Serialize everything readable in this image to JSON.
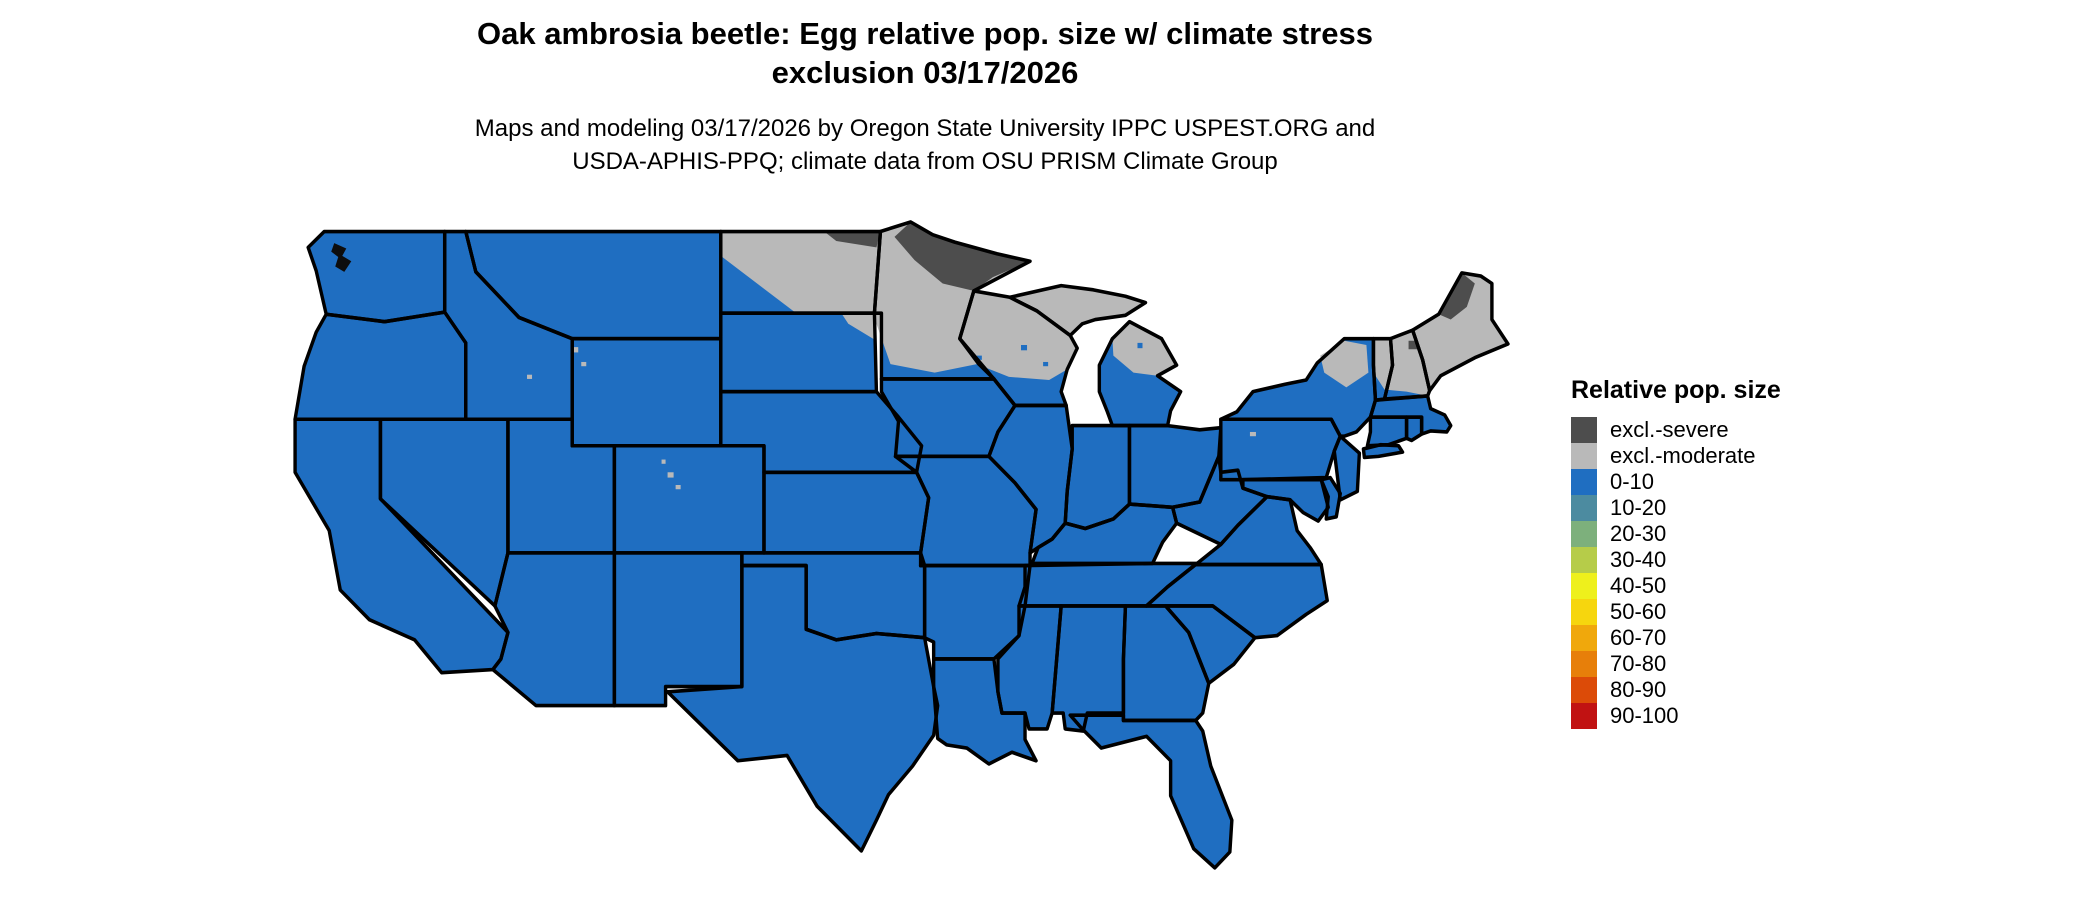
{
  "title": {
    "line1": "Oak ambrosia beetle: Egg relative pop. size w/ climate stress",
    "line2": "exclusion 03/17/2026"
  },
  "subtitle": {
    "line1": "Maps and modeling 03/17/2026 by Oregon State University IPPC USPEST.ORG and",
    "line2": "USDA-APHIS-PPQ; climate data from OSU PRISM Climate Group"
  },
  "legend": {
    "title": "Relative pop. size",
    "items": [
      {
        "label": "excl.-severe",
        "color": "#4d4d4d"
      },
      {
        "label": "excl.-moderate",
        "color": "#b9b9b9"
      },
      {
        "label": "0-10",
        "color": "#1f6ec1"
      },
      {
        "label": "10-20",
        "color": "#4c8ba0"
      },
      {
        "label": "20-30",
        "color": "#7db07c"
      },
      {
        "label": "30-40",
        "color": "#b6cc49"
      },
      {
        "label": "40-50",
        "color": "#eef01c"
      },
      {
        "label": "50-60",
        "color": "#f6d60e"
      },
      {
        "label": "60-70",
        "color": "#f0a80c"
      },
      {
        "label": "70-80",
        "color": "#e77f0a"
      },
      {
        "label": "80-90",
        "color": "#dc4b08"
      },
      {
        "label": "90-100",
        "color": "#c11212"
      }
    ]
  },
  "map": {
    "palette": {
      "base": "#1f6ec1",
      "excl_moderate": "#b9b9b9",
      "excl_severe": "#4d4d4d",
      "border": "#000000"
    }
  }
}
